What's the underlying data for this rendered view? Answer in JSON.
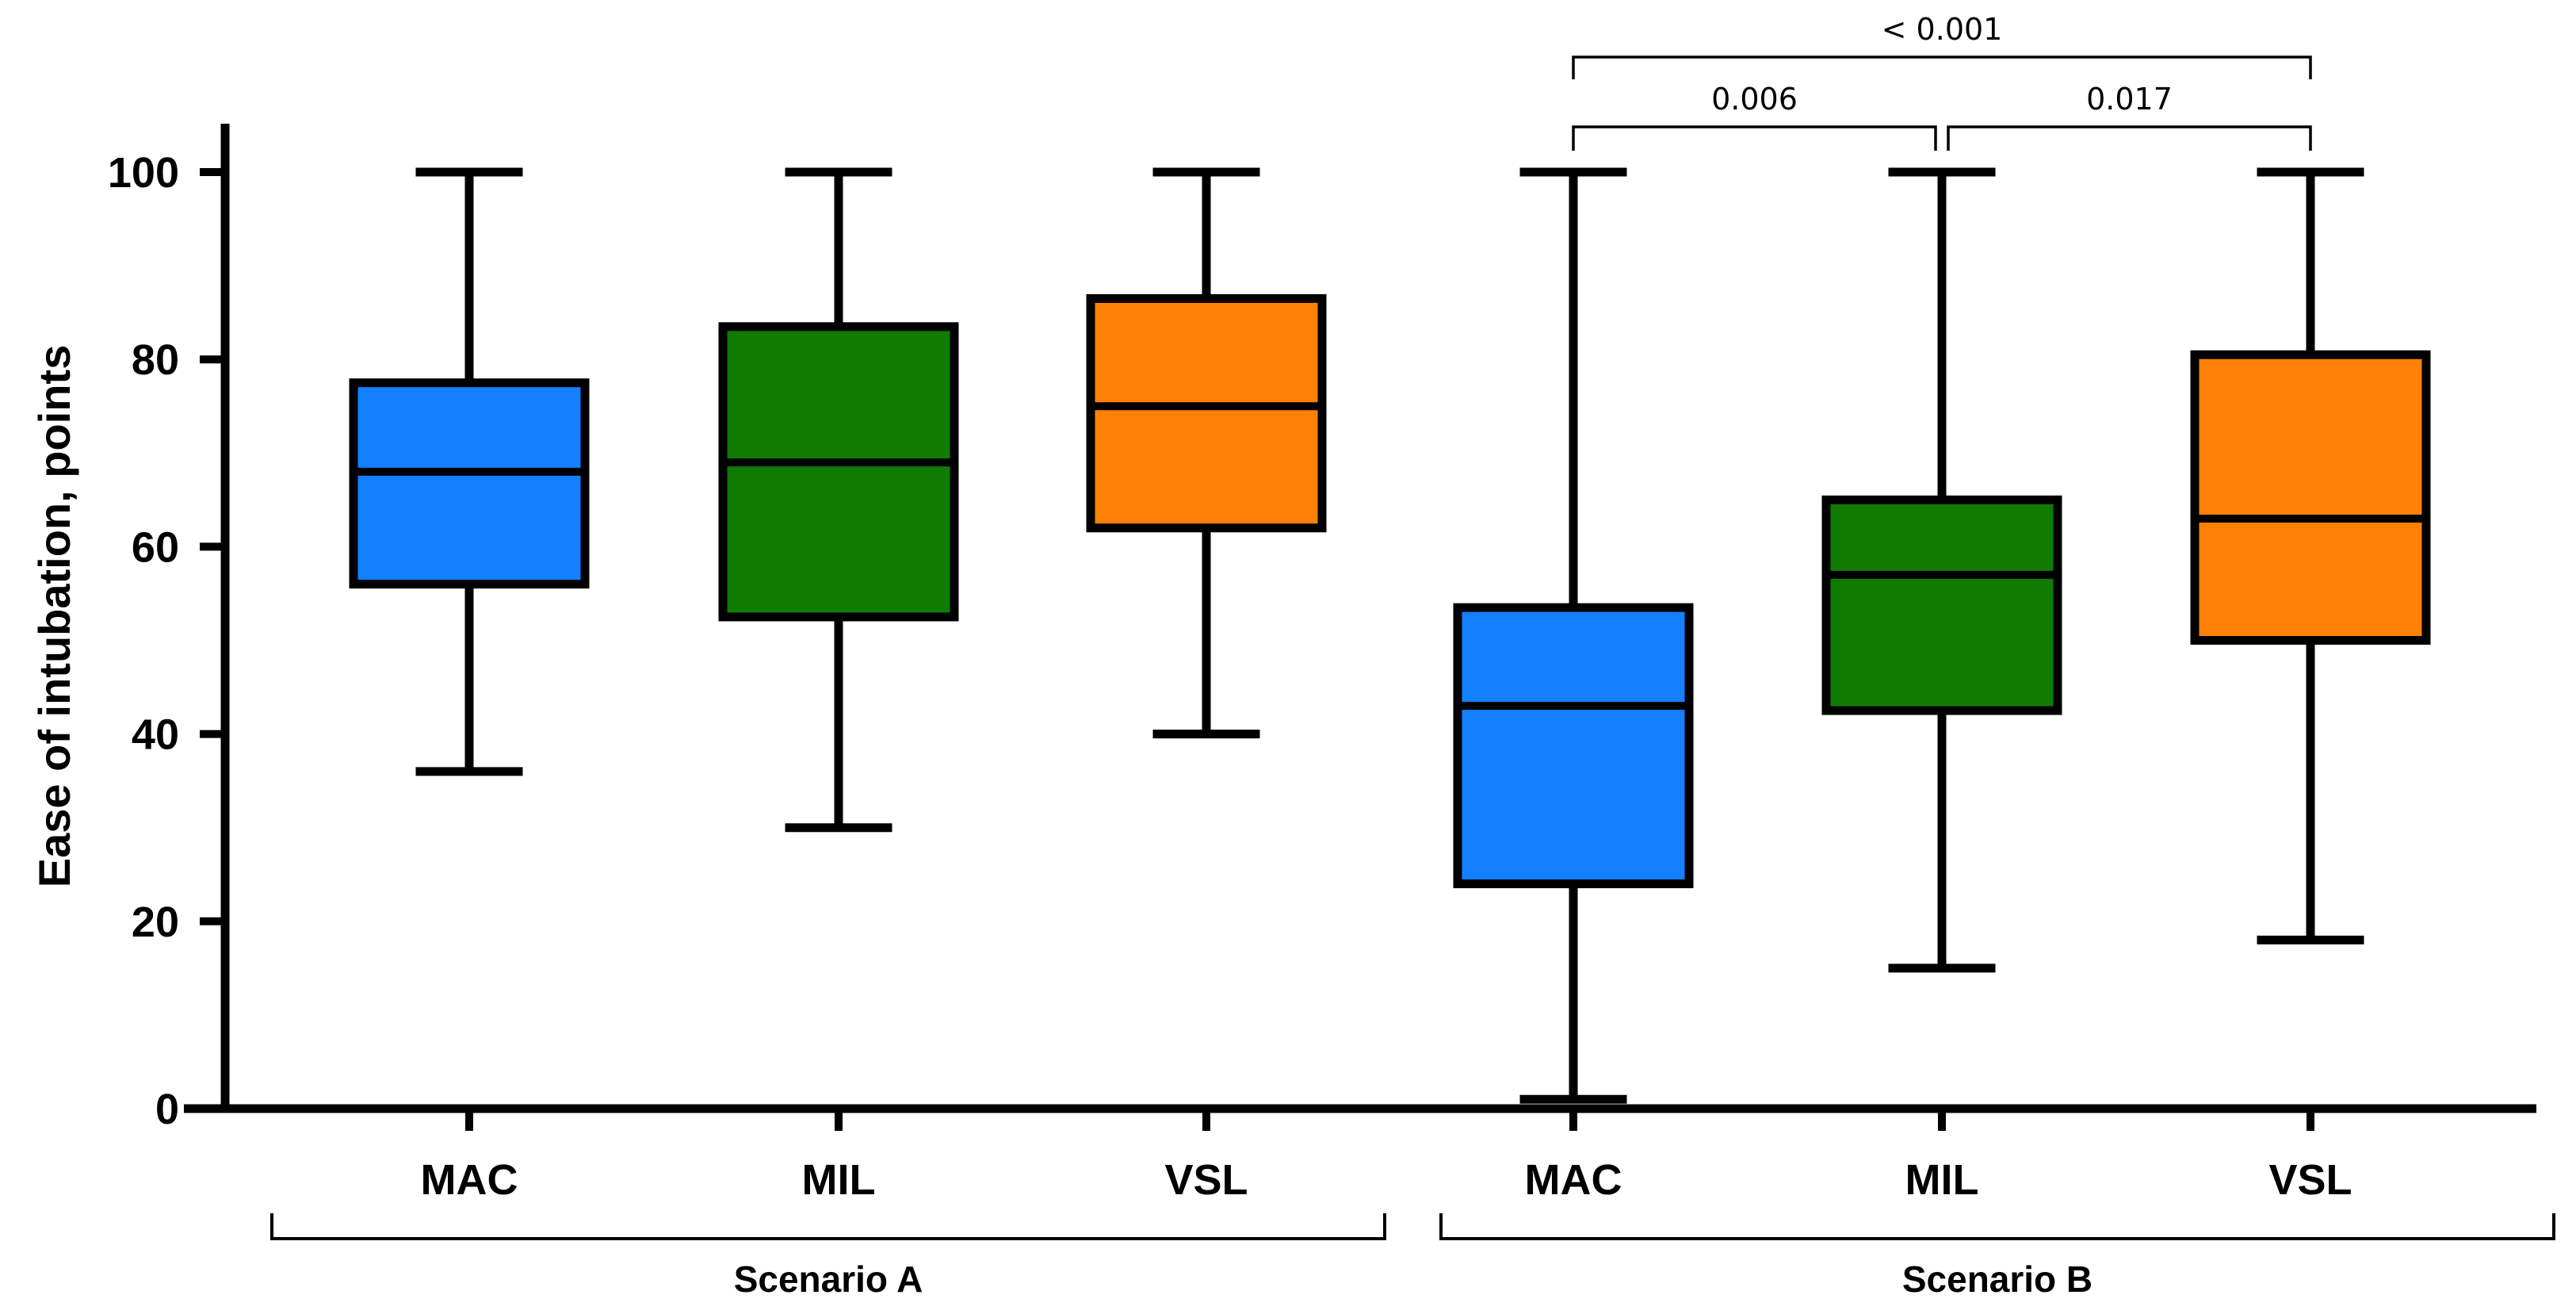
{
  "chart_data": {
    "type": "box",
    "title": "",
    "xlabel": "",
    "ylabel": "Ease of intubation, points",
    "ylim": [
      0,
      100
    ],
    "yticks": [
      0,
      20,
      40,
      60,
      80,
      100
    ],
    "ytick_labels": [
      "0",
      "20",
      "40",
      "60",
      "80",
      "100"
    ],
    "colors": {
      "MAC": "#1380FF",
      "MIL": "#0F7B00",
      "VSL": "#FF8005",
      "stroke": "#000000"
    },
    "groups": [
      {
        "label": "Scenario A",
        "boxes": [
          {
            "device": "MAC",
            "min": 36,
            "q1": 56,
            "median": 68,
            "q3": 77.5,
            "max": 100
          },
          {
            "device": "MIL",
            "min": 30,
            "q1": 52.5,
            "median": 69,
            "q3": 83.5,
            "max": 100
          },
          {
            "device": "VSL",
            "min": 40,
            "q1": 62,
            "median": 75,
            "q3": 86.5,
            "max": 100
          }
        ]
      },
      {
        "label": "Scenario B",
        "boxes": [
          {
            "device": "MAC",
            "min": 1,
            "q1": 24,
            "median": 43,
            "q3": 53.5,
            "max": 100
          },
          {
            "device": "MIL",
            "min": 15,
            "q1": 42.5,
            "median": 57,
            "q3": 65,
            "max": 100
          },
          {
            "device": "VSL",
            "min": 18,
            "q1": 50,
            "median": 63,
            "q3": 80.5,
            "max": 100
          }
        ]
      }
    ],
    "significance": [
      {
        "group": "Scenario B",
        "from": "MAC",
        "to": "VSL",
        "label": "< 0.001"
      },
      {
        "group": "Scenario B",
        "from": "MAC",
        "to": "MIL",
        "label": "0.006"
      },
      {
        "group": "Scenario B",
        "from": "MIL",
        "to": "VSL",
        "label": "0.017"
      }
    ]
  }
}
